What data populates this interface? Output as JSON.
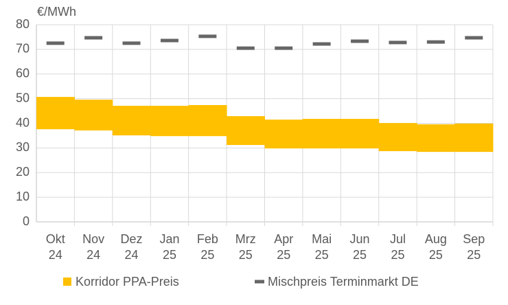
{
  "chart_data": {
    "type": "range_bar",
    "y_label": "€/MWh",
    "categories": [
      [
        "Okt",
        "24"
      ],
      [
        "Nov",
        "24"
      ],
      [
        "Dez",
        "24"
      ],
      [
        "Jan",
        "25"
      ],
      [
        "Feb",
        "25"
      ],
      [
        "Mrz",
        "25"
      ],
      [
        "Apr",
        "25"
      ],
      [
        "Mai",
        "25"
      ],
      [
        "Jun",
        "25"
      ],
      [
        "Jul",
        "25"
      ],
      [
        "Aug",
        "25"
      ],
      [
        "Sep",
        "25"
      ]
    ],
    "series": [
      {
        "name": "Korridor PPA-Preis",
        "color": "#ffc000",
        "low": [
          37.6,
          37.1,
          35.1,
          34.8,
          34.8,
          31.2,
          29.8,
          29.8,
          29.8,
          28.7,
          28.4,
          28.4
        ],
        "high": [
          50.7,
          49.6,
          47.1,
          47.1,
          47.4,
          42.9,
          41.5,
          41.8,
          41.8,
          40.1,
          39.6,
          39.9
        ]
      },
      {
        "name": "Mischpreis Terminmarkt DE",
        "color": "#666666",
        "values": [
          72.5,
          74.7,
          72.5,
          73.6,
          75.3,
          70.5,
          70.5,
          72.2,
          73.3,
          72.8,
          73.0,
          74.7
        ]
      }
    ],
    "ylim": [
      0,
      80
    ],
    "yticks": [
      0,
      10,
      20,
      30,
      40,
      50,
      60,
      70,
      80
    ],
    "grid": true,
    "legend": "bottom"
  }
}
